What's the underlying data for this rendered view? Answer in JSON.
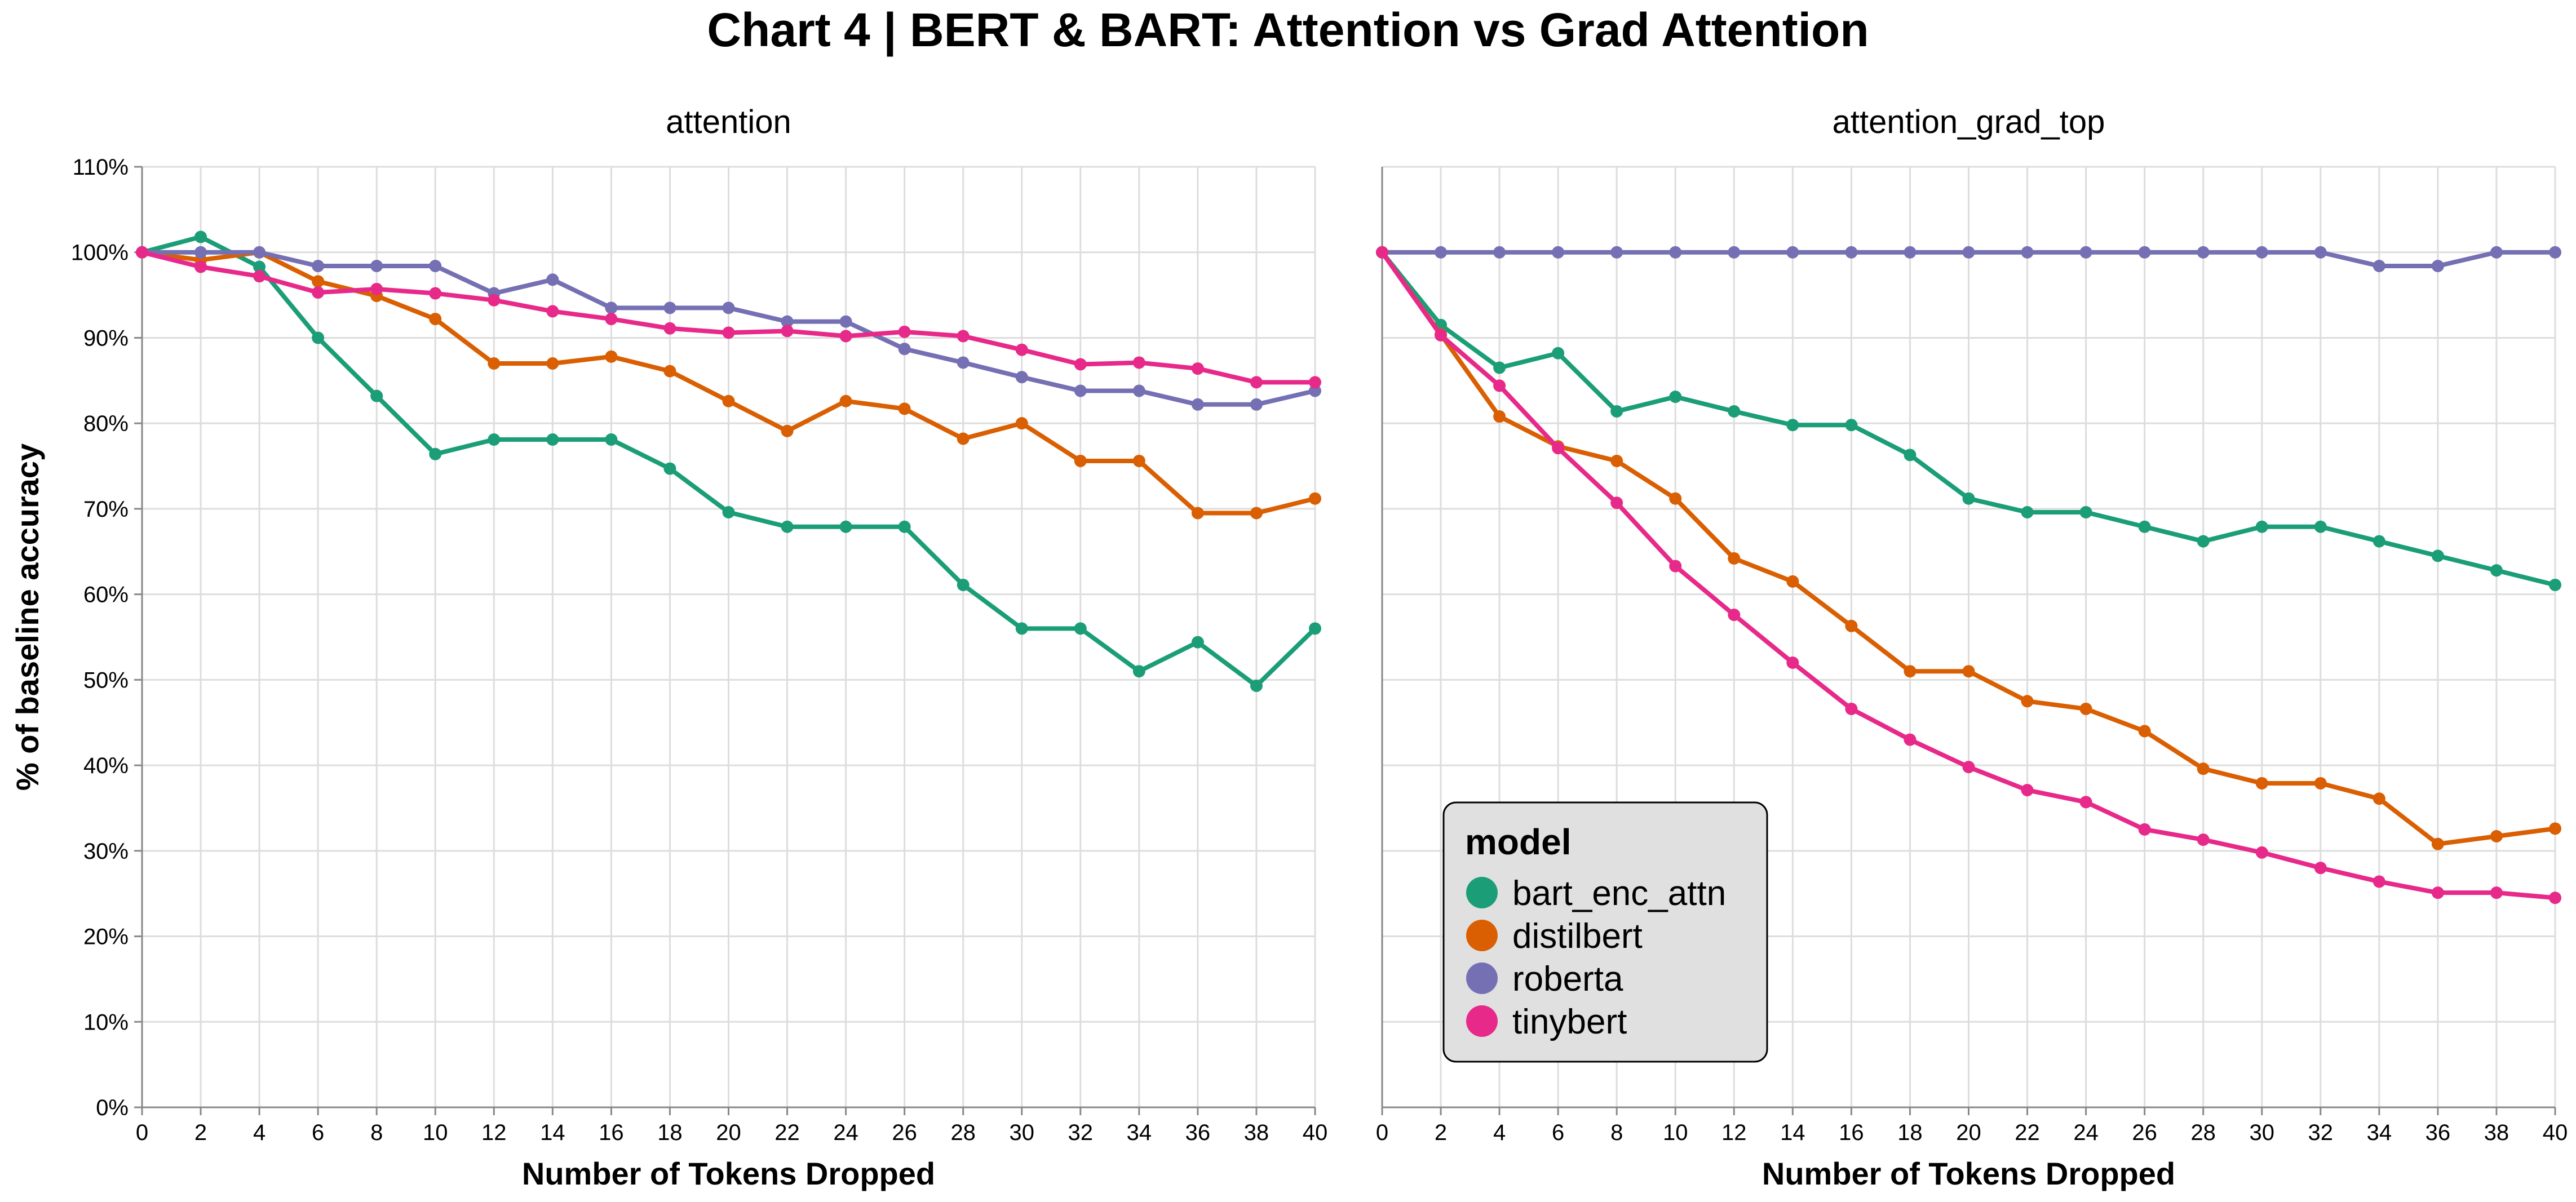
{
  "title": "Chart 4 | BERT & BART: Attention vs Grad Attention",
  "y_axis_title": "% of baseline accuracy",
  "colors": {
    "bart_enc_attn": "#1b9e77",
    "distilbert": "#d95f02",
    "roberta": "#7570b3",
    "tinybert": "#e7298a"
  },
  "legend": {
    "title": "model",
    "placement": "bottom-left of right panel",
    "entries": [
      "bart_enc_attn",
      "distilbert",
      "roberta",
      "tinybert"
    ]
  },
  "chart_data": [
    {
      "type": "line",
      "title": "attention",
      "xlabel": "Number of Tokens Dropped",
      "ylabel": "% of baseline accuracy",
      "x": [
        0,
        2,
        4,
        6,
        8,
        10,
        12,
        14,
        16,
        18,
        20,
        22,
        24,
        26,
        28,
        30,
        32,
        34,
        36,
        38,
        40
      ],
      "xlim": [
        0,
        40
      ],
      "ylim": [
        0,
        110
      ],
      "y_ticks": [
        "0%",
        "10%",
        "20%",
        "30%",
        "40%",
        "50%",
        "60%",
        "70%",
        "80%",
        "90%",
        "100%",
        "110%"
      ],
      "grid": true,
      "series": [
        {
          "name": "bart_enc_attn",
          "values": [
            100,
            101.8,
            98.3,
            90,
            83.2,
            76.4,
            78.1,
            78.1,
            78.1,
            74.7,
            69.6,
            67.9,
            67.9,
            67.9,
            61.1,
            56.0,
            56.0,
            51.0,
            54.4,
            49.3,
            56.0
          ]
        },
        {
          "name": "distilbert",
          "values": [
            100,
            99.1,
            100,
            96.6,
            94.9,
            92.2,
            87.0,
            87.0,
            87.8,
            86.1,
            82.6,
            79.1,
            82.6,
            81.7,
            78.2,
            80.0,
            75.6,
            75.6,
            69.5,
            69.5,
            71.2
          ]
        },
        {
          "name": "roberta",
          "values": [
            100,
            100,
            100,
            98.4,
            98.4,
            98.4,
            95.2,
            96.8,
            93.5,
            93.5,
            93.5,
            91.9,
            91.9,
            88.7,
            87.1,
            85.4,
            83.8,
            83.8,
            82.2,
            82.2,
            83.8
          ]
        },
        {
          "name": "tinybert",
          "values": [
            100,
            98.3,
            97.2,
            95.3,
            95.7,
            95.2,
            94.4,
            93.1,
            92.2,
            91.1,
            90.6,
            90.8,
            90.2,
            90.7,
            90.2,
            88.6,
            86.9,
            87.1,
            86.4,
            84.8,
            84.8
          ]
        }
      ]
    },
    {
      "type": "line",
      "title": "attention_grad_top",
      "xlabel": "Number of Tokens Dropped",
      "ylabel": "",
      "x": [
        0,
        2,
        4,
        6,
        8,
        10,
        12,
        14,
        16,
        18,
        20,
        22,
        24,
        26,
        28,
        30,
        32,
        34,
        36,
        38,
        40
      ],
      "xlim": [
        0,
        40
      ],
      "ylim": [
        0,
        110
      ],
      "grid": true,
      "series": [
        {
          "name": "bart_enc_attn",
          "values": [
            100,
            91.5,
            86.5,
            88.2,
            81.4,
            83.1,
            81.4,
            79.8,
            79.8,
            76.3,
            71.2,
            69.6,
            69.6,
            67.9,
            66.2,
            67.9,
            67.9,
            66.2,
            64.5,
            62.8,
            61.1
          ]
        },
        {
          "name": "distilbert",
          "values": [
            100,
            90.4,
            80.8,
            77.3,
            75.6,
            71.2,
            64.2,
            61.5,
            56.3,
            51.0,
            51.0,
            47.5,
            46.6,
            44.0,
            39.6,
            37.9,
            37.9,
            36.1,
            30.8,
            31.7,
            32.6
          ]
        },
        {
          "name": "roberta",
          "values": [
            100,
            100,
            100,
            100,
            100,
            100,
            100,
            100,
            100,
            100,
            100,
            100,
            100,
            100,
            100,
            100,
            100,
            98.4,
            98.4,
            100,
            100
          ]
        },
        {
          "name": "tinybert",
          "values": [
            100,
            90.3,
            84.4,
            77.1,
            70.7,
            63.3,
            57.6,
            52.0,
            46.6,
            43.0,
            39.8,
            37.1,
            35.7,
            32.5,
            31.3,
            29.8,
            28.0,
            26.4,
            25.1,
            25.1,
            24.5
          ]
        }
      ]
    }
  ]
}
